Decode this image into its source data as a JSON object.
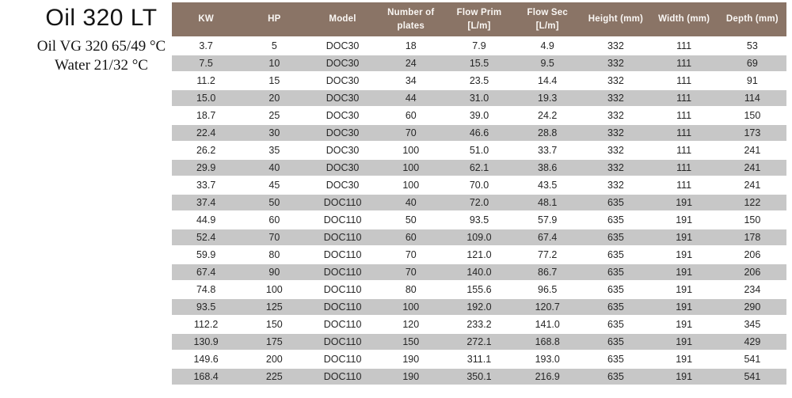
{
  "header": {
    "title": "Oil 320 LT",
    "oil_spec": "Oil VG 320 65/49 °C",
    "water_spec": "Water 21/32 °C"
  },
  "table": {
    "columns": [
      {
        "label": "KW",
        "lines": [
          "KW"
        ]
      },
      {
        "label": "HP",
        "lines": [
          "HP"
        ]
      },
      {
        "label": "Model",
        "lines": [
          "Model"
        ]
      },
      {
        "label": "Number of plates",
        "lines": [
          "Number of",
          "plates"
        ]
      },
      {
        "label": "Flow Prim [L/m]",
        "lines": [
          "Flow Prim",
          "[L/m]"
        ]
      },
      {
        "label": "Flow Sec [L/m]",
        "lines": [
          "Flow Sec",
          "[L/m]"
        ]
      },
      {
        "label": "Height (mm)",
        "lines": [
          "Height (mm)"
        ]
      },
      {
        "label": "Width (mm)",
        "lines": [
          "Width (mm)"
        ]
      },
      {
        "label": "Depth (mm)",
        "lines": [
          "Depth (mm)"
        ]
      }
    ],
    "rows": [
      [
        "3.7",
        "5",
        "DOC30",
        "18",
        "7.9",
        "4.9",
        "332",
        "111",
        "53"
      ],
      [
        "7.5",
        "10",
        "DOC30",
        "24",
        "15.5",
        "9.5",
        "332",
        "111",
        "69"
      ],
      [
        "11.2",
        "15",
        "DOC30",
        "34",
        "23.5",
        "14.4",
        "332",
        "111",
        "91"
      ],
      [
        "15.0",
        "20",
        "DOC30",
        "44",
        "31.0",
        "19.3",
        "332",
        "111",
        "114"
      ],
      [
        "18.7",
        "25",
        "DOC30",
        "60",
        "39.0",
        "24.2",
        "332",
        "111",
        "150"
      ],
      [
        "22.4",
        "30",
        "DOC30",
        "70",
        "46.6",
        "28.8",
        "332",
        "111",
        "173"
      ],
      [
        "26.2",
        "35",
        "DOC30",
        "100",
        "51.0",
        "33.7",
        "332",
        "111",
        "241"
      ],
      [
        "29.9",
        "40",
        "DOC30",
        "100",
        "62.1",
        "38.6",
        "332",
        "111",
        "241"
      ],
      [
        "33.7",
        "45",
        "DOC30",
        "100",
        "70.0",
        "43.5",
        "332",
        "111",
        "241"
      ],
      [
        "37.4",
        "50",
        "DOC110",
        "40",
        "72.0",
        "48.1",
        "635",
        "191",
        "122"
      ],
      [
        "44.9",
        "60",
        "DOC110",
        "50",
        "93.5",
        "57.9",
        "635",
        "191",
        "150"
      ],
      [
        "52.4",
        "70",
        "DOC110",
        "60",
        "109.0",
        "67.4",
        "635",
        "191",
        "178"
      ],
      [
        "59.9",
        "80",
        "DOC110",
        "70",
        "121.0",
        "77.2",
        "635",
        "191",
        "206"
      ],
      [
        "67.4",
        "90",
        "DOC110",
        "70",
        "140.0",
        "86.7",
        "635",
        "191",
        "206"
      ],
      [
        "74.8",
        "100",
        "DOC110",
        "80",
        "155.6",
        "96.5",
        "635",
        "191",
        "234"
      ],
      [
        "93.5",
        "125",
        "DOC110",
        "100",
        "192.0",
        "120.7",
        "635",
        "191",
        "290"
      ],
      [
        "112.2",
        "150",
        "DOC110",
        "120",
        "233.2",
        "141.0",
        "635",
        "191",
        "345"
      ],
      [
        "130.9",
        "175",
        "DOC110",
        "150",
        "272.1",
        "168.8",
        "635",
        "191",
        "429"
      ],
      [
        "149.6",
        "200",
        "DOC110",
        "190",
        "311.1",
        "193.0",
        "635",
        "191",
        "541"
      ],
      [
        "168.4",
        "225",
        "DOC110",
        "190",
        "350.1",
        "216.9",
        "635",
        "191",
        "541"
      ]
    ]
  },
  "colors": {
    "header_bg": "#8a7466",
    "header_text": "#faf7f4",
    "row_alt_bg": "#c7c7c7",
    "body_text": "#262626"
  }
}
